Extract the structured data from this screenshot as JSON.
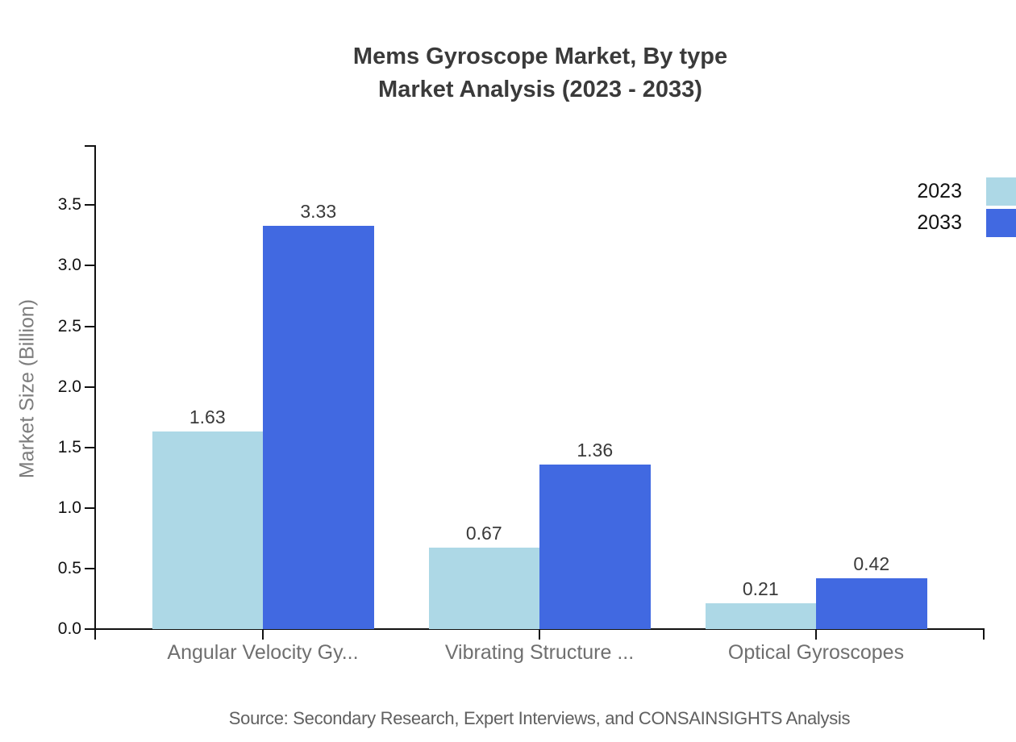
{
  "title": {
    "line1": "Mems Gyroscope Market, By type",
    "line2": "Market Analysis (2023 - 2033)"
  },
  "source": "Source: Secondary Research, Expert Interviews, and CONSAINSIGHTS Analysis",
  "colors": {
    "series_2023": "#ADD8E6",
    "series_2033": "#4169E1",
    "axis": "#111111",
    "title_text": "#3a3a3a",
    "category_text": "#6f6f6f",
    "source_text": "#606060"
  },
  "chart_data": {
    "type": "bar",
    "title": "Mems Gyroscope Market, By type Market Analysis (2023 - 2033)",
    "categories": [
      "Angular Velocity Gy...",
      "Vibrating Structure ...",
      "Optical Gyroscopes"
    ],
    "series": [
      {
        "name": "2023",
        "color": "#ADD8E6",
        "values": [
          1.63,
          0.67,
          0.21
        ]
      },
      {
        "name": "2033",
        "color": "#4169E1",
        "values": [
          3.33,
          1.36,
          0.42
        ]
      }
    ],
    "xlabel": "",
    "ylabel": "Market Size (Billion)",
    "ylim": [
      0,
      4.0
    ],
    "yticks": [
      0.0,
      0.5,
      1.0,
      1.5,
      2.0,
      2.5,
      3.0,
      3.5
    ],
    "grid": false,
    "legend_position": "top-right",
    "value_labels": true,
    "value_label_decimals": 2
  }
}
